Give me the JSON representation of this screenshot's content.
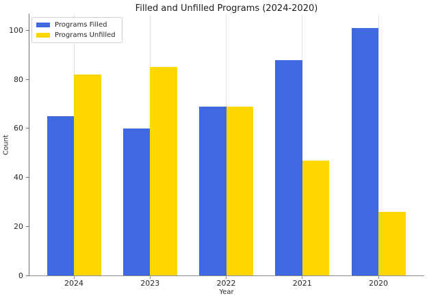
{
  "chart_data": {
    "type": "bar",
    "title": "Filled and Unfilled Programs (2024-2020)",
    "xlabel": "Year",
    "ylabel": "Count",
    "categories": [
      "2024",
      "2023",
      "2022",
      "2021",
      "2020"
    ],
    "series": [
      {
        "name": "Programs Filled",
        "color": "#3E69E1",
        "values": [
          65,
          60,
          69,
          88,
          101
        ]
      },
      {
        "name": "Programs Unfilled",
        "color": "#FFD700",
        "values": [
          82,
          85,
          69,
          47,
          26
        ]
      }
    ],
    "yticks": [
      0,
      20,
      40,
      60,
      80,
      100
    ],
    "ylim": [
      0,
      107
    ],
    "grid": "vertical-dotted",
    "gridline_color": "#c9c9c9",
    "legend_position": "upper-left",
    "background_color": "#ffffff"
  }
}
